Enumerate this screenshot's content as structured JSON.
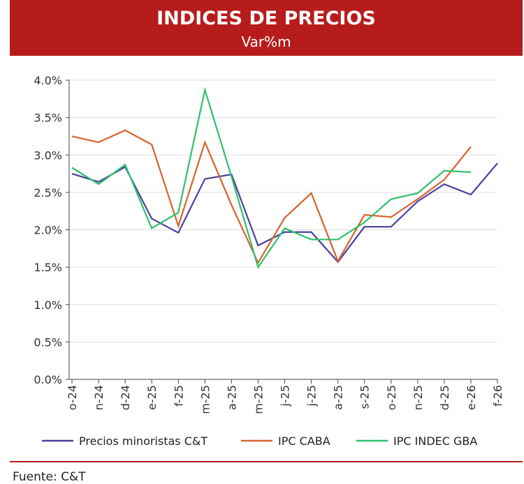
{
  "header": {
    "title": "INDICES DE PRECIOS",
    "subtitle": "Var%m"
  },
  "footer": {
    "source": "Fuente: C&T"
  },
  "chart_data": {
    "type": "line",
    "title": "INDICES DE PRECIOS",
    "subtitle": "Var%m",
    "categories": [
      "o-24",
      "n-24",
      "d-24",
      "e-25",
      "f-25",
      "m-25",
      "a-25",
      "m-25",
      "j-25",
      "j-25",
      "a-25",
      "s-25",
      "o-25",
      "n-25",
      "d-25",
      "e-26",
      "f-26"
    ],
    "ylim": [
      0,
      4.0
    ],
    "yticks": [
      "0.0%",
      "0.5%",
      "1.0%",
      "1.5%",
      "2.0%",
      "2.5%",
      "3.0%",
      "3.5%",
      "4.0%"
    ],
    "grid": true,
    "legend": "bottom",
    "series": [
      {
        "name": "Precios minoristas C&T",
        "color": "#4b3fa0",
        "values": [
          2.75,
          2.64,
          2.84,
          2.15,
          1.96,
          2.68,
          2.74,
          1.79,
          1.97,
          1.97,
          1.57,
          2.04,
          2.04,
          2.38,
          2.61,
          2.47,
          2.89
        ]
      },
      {
        "name": "IPC CABA",
        "color": "#d9622b",
        "values": [
          3.25,
          3.17,
          3.33,
          3.14,
          2.05,
          3.17,
          2.33,
          1.56,
          2.16,
          2.49,
          1.58,
          2.2,
          2.17,
          2.41,
          2.67,
          3.11,
          null
        ]
      },
      {
        "name": "IPC INDEC GBA",
        "color": "#2ec06a",
        "values": [
          2.83,
          2.61,
          2.87,
          2.02,
          2.23,
          3.87,
          2.71,
          1.5,
          2.02,
          1.87,
          1.87,
          2.1,
          2.41,
          2.49,
          2.79,
          2.77,
          null
        ]
      }
    ]
  }
}
